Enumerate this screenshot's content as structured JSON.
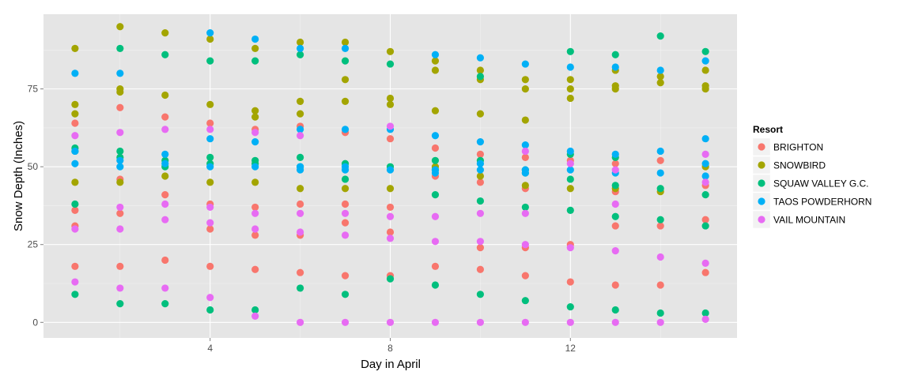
{
  "chart_data": {
    "type": "scatter",
    "xlabel": "Day in April",
    "ylabel": "Snow Depth (Inches)",
    "xlim": [
      0.3,
      15.7
    ],
    "ylim": [
      -5,
      99
    ],
    "x_ticks": [
      4,
      8,
      12
    ],
    "y_ticks": [
      0,
      25,
      50,
      75
    ],
    "grid": true,
    "background": "#e5e5e5",
    "legend": {
      "title": "Resort",
      "position": "right"
    },
    "series": [
      {
        "name": "BRIGHTON",
        "color": "#f8766d",
        "points": [
          [
            1,
            64
          ],
          [
            1,
            36
          ],
          [
            1,
            31
          ],
          [
            1,
            18
          ],
          [
            2,
            69
          ],
          [
            2,
            46
          ],
          [
            2,
            35
          ],
          [
            2,
            18
          ],
          [
            3,
            66
          ],
          [
            3,
            41
          ],
          [
            3,
            20
          ],
          [
            4,
            64
          ],
          [
            4,
            38
          ],
          [
            4,
            30
          ],
          [
            4,
            18
          ],
          [
            5,
            62
          ],
          [
            5,
            37
          ],
          [
            5,
            28
          ],
          [
            5,
            17
          ],
          [
            6,
            63
          ],
          [
            6,
            38
          ],
          [
            6,
            28
          ],
          [
            6,
            16
          ],
          [
            7,
            61
          ],
          [
            7,
            38
          ],
          [
            7,
            32
          ],
          [
            7,
            15
          ],
          [
            8,
            59
          ],
          [
            8,
            37
          ],
          [
            8,
            29
          ],
          [
            8,
            15
          ],
          [
            9,
            56
          ],
          [
            9,
            47
          ],
          [
            9,
            18
          ],
          [
            10,
            54
          ],
          [
            10,
            45
          ],
          [
            10,
            24
          ],
          [
            10,
            17
          ],
          [
            11,
            53
          ],
          [
            11,
            43
          ],
          [
            11,
            24
          ],
          [
            11,
            15
          ],
          [
            12,
            52
          ],
          [
            12,
            25
          ],
          [
            12,
            13
          ],
          [
            13,
            51
          ],
          [
            13,
            42
          ],
          [
            13,
            31
          ],
          [
            13,
            12
          ],
          [
            14,
            52
          ],
          [
            14,
            31
          ],
          [
            14,
            12
          ],
          [
            15,
            44
          ],
          [
            15,
            33
          ],
          [
            15,
            16
          ]
        ]
      },
      {
        "name": "SNOWBIRD",
        "color": "#a3a500",
        "points": [
          [
            1,
            88
          ],
          [
            1,
            70
          ],
          [
            1,
            67
          ],
          [
            1,
            45
          ],
          [
            2,
            95
          ],
          [
            2,
            75
          ],
          [
            2,
            74
          ],
          [
            2,
            45
          ],
          [
            3,
            93
          ],
          [
            3,
            73
          ],
          [
            3,
            47
          ],
          [
            4,
            91
          ],
          [
            4,
            70
          ],
          [
            4,
            45
          ],
          [
            5,
            88
          ],
          [
            5,
            68
          ],
          [
            5,
            66
          ],
          [
            5,
            45
          ],
          [
            6,
            90
          ],
          [
            6,
            71
          ],
          [
            6,
            67
          ],
          [
            6,
            43
          ],
          [
            7,
            90
          ],
          [
            7,
            78
          ],
          [
            7,
            71
          ],
          [
            7,
            43
          ],
          [
            8,
            87
          ],
          [
            8,
            72
          ],
          [
            8,
            70
          ],
          [
            8,
            43
          ],
          [
            9,
            84
          ],
          [
            9,
            81
          ],
          [
            9,
            68
          ],
          [
            9,
            50
          ],
          [
            10,
            81
          ],
          [
            10,
            78
          ],
          [
            10,
            67
          ],
          [
            10,
            47
          ],
          [
            11,
            78
          ],
          [
            11,
            75
          ],
          [
            11,
            65
          ],
          [
            11,
            44
          ],
          [
            12,
            78
          ],
          [
            12,
            75
          ],
          [
            12,
            72
          ],
          [
            12,
            43
          ],
          [
            13,
            81
          ],
          [
            13,
            76
          ],
          [
            13,
            75
          ],
          [
            13,
            43
          ],
          [
            14,
            79
          ],
          [
            14,
            77
          ],
          [
            14,
            42
          ],
          [
            15,
            81
          ],
          [
            15,
            76
          ],
          [
            15,
            75
          ],
          [
            15,
            50
          ]
        ]
      },
      {
        "name": "SQUAW VALLEY G.C.",
        "color": "#00bf7d",
        "points": [
          [
            1,
            56
          ],
          [
            1,
            55
          ],
          [
            1,
            38
          ],
          [
            1,
            9
          ],
          [
            2,
            88
          ],
          [
            2,
            55
          ],
          [
            2,
            53
          ],
          [
            2,
            6
          ],
          [
            3,
            86
          ],
          [
            3,
            52
          ],
          [
            3,
            50
          ],
          [
            3,
            6
          ],
          [
            4,
            84
          ],
          [
            4,
            53
          ],
          [
            4,
            51
          ],
          [
            4,
            4
          ],
          [
            5,
            84
          ],
          [
            5,
            52
          ],
          [
            5,
            51
          ],
          [
            5,
            4
          ],
          [
            6,
            86
          ],
          [
            6,
            53
          ],
          [
            6,
            50
          ],
          [
            6,
            11
          ],
          [
            7,
            84
          ],
          [
            7,
            51
          ],
          [
            7,
            46
          ],
          [
            7,
            9
          ],
          [
            8,
            83
          ],
          [
            8,
            50
          ],
          [
            8,
            14
          ],
          [
            9,
            52
          ],
          [
            9,
            49
          ],
          [
            9,
            41
          ],
          [
            9,
            12
          ],
          [
            10,
            79
          ],
          [
            10,
            52
          ],
          [
            10,
            39
          ],
          [
            10,
            9
          ],
          [
            11,
            49
          ],
          [
            11,
            48
          ],
          [
            11,
            37
          ],
          [
            11,
            7
          ],
          [
            12,
            87
          ],
          [
            12,
            54
          ],
          [
            12,
            46
          ],
          [
            12,
            36
          ],
          [
            12,
            5
          ],
          [
            13,
            86
          ],
          [
            13,
            53
          ],
          [
            13,
            44
          ],
          [
            13,
            34
          ],
          [
            13,
            4
          ],
          [
            14,
            92
          ],
          [
            14,
            43
          ],
          [
            14,
            33
          ],
          [
            14,
            3
          ],
          [
            15,
            87
          ],
          [
            15,
            41
          ],
          [
            15,
            31
          ],
          [
            15,
            3
          ]
        ]
      },
      {
        "name": "TAOS POWDERHORN",
        "color": "#00b0f6",
        "points": [
          [
            1,
            80
          ],
          [
            1,
            55
          ],
          [
            1,
            51
          ],
          [
            2,
            80
          ],
          [
            2,
            52
          ],
          [
            2,
            50
          ],
          [
            3,
            54
          ],
          [
            3,
            51
          ],
          [
            4,
            93
          ],
          [
            4,
            59
          ],
          [
            4,
            50
          ],
          [
            5,
            91
          ],
          [
            5,
            58
          ],
          [
            5,
            50
          ],
          [
            6,
            88
          ],
          [
            6,
            62
          ],
          [
            6,
            50
          ],
          [
            6,
            49
          ],
          [
            7,
            88
          ],
          [
            7,
            62
          ],
          [
            7,
            50
          ],
          [
            7,
            49
          ],
          [
            8,
            62
          ],
          [
            8,
            49
          ],
          [
            9,
            86
          ],
          [
            9,
            60
          ],
          [
            9,
            49
          ],
          [
            9,
            48
          ],
          [
            10,
            85
          ],
          [
            10,
            58
          ],
          [
            10,
            51
          ],
          [
            10,
            49
          ],
          [
            11,
            83
          ],
          [
            11,
            57
          ],
          [
            11,
            49
          ],
          [
            11,
            48
          ],
          [
            12,
            82
          ],
          [
            12,
            55
          ],
          [
            12,
            49
          ],
          [
            13,
            82
          ],
          [
            13,
            54
          ],
          [
            13,
            48
          ],
          [
            14,
            81
          ],
          [
            14,
            55
          ],
          [
            14,
            48
          ],
          [
            15,
            84
          ],
          [
            15,
            59
          ],
          [
            15,
            51
          ],
          [
            15,
            47
          ]
        ]
      },
      {
        "name": "VAIL MOUNTAIN",
        "color": "#e76bf3",
        "points": [
          [
            1,
            60
          ],
          [
            1,
            30
          ],
          [
            1,
            13
          ],
          [
            2,
            61
          ],
          [
            2,
            37
          ],
          [
            2,
            30
          ],
          [
            2,
            11
          ],
          [
            3,
            62
          ],
          [
            3,
            38
          ],
          [
            3,
            33
          ],
          [
            3,
            11
          ],
          [
            4,
            62
          ],
          [
            4,
            37
          ],
          [
            4,
            32
          ],
          [
            4,
            8
          ],
          [
            5,
            61
          ],
          [
            5,
            35
          ],
          [
            5,
            30
          ],
          [
            5,
            2
          ],
          [
            6,
            60
          ],
          [
            6,
            35
          ],
          [
            6,
            29
          ],
          [
            6,
            0
          ],
          [
            7,
            35
          ],
          [
            7,
            28
          ],
          [
            7,
            0
          ],
          [
            8,
            63
          ],
          [
            8,
            34
          ],
          [
            8,
            27
          ],
          [
            8,
            0
          ],
          [
            9,
            34
          ],
          [
            9,
            26
          ],
          [
            9,
            0
          ],
          [
            10,
            35
          ],
          [
            10,
            26
          ],
          [
            10,
            0
          ],
          [
            11,
            55
          ],
          [
            11,
            35
          ],
          [
            11,
            25
          ],
          [
            11,
            0
          ],
          [
            12,
            51
          ],
          [
            12,
            24
          ],
          [
            12,
            0
          ],
          [
            13,
            49
          ],
          [
            13,
            38
          ],
          [
            13,
            23
          ],
          [
            13,
            0
          ],
          [
            14,
            21
          ],
          [
            14,
            0
          ],
          [
            15,
            54
          ],
          [
            15,
            45
          ],
          [
            15,
            19
          ],
          [
            15,
            1
          ]
        ]
      }
    ]
  }
}
